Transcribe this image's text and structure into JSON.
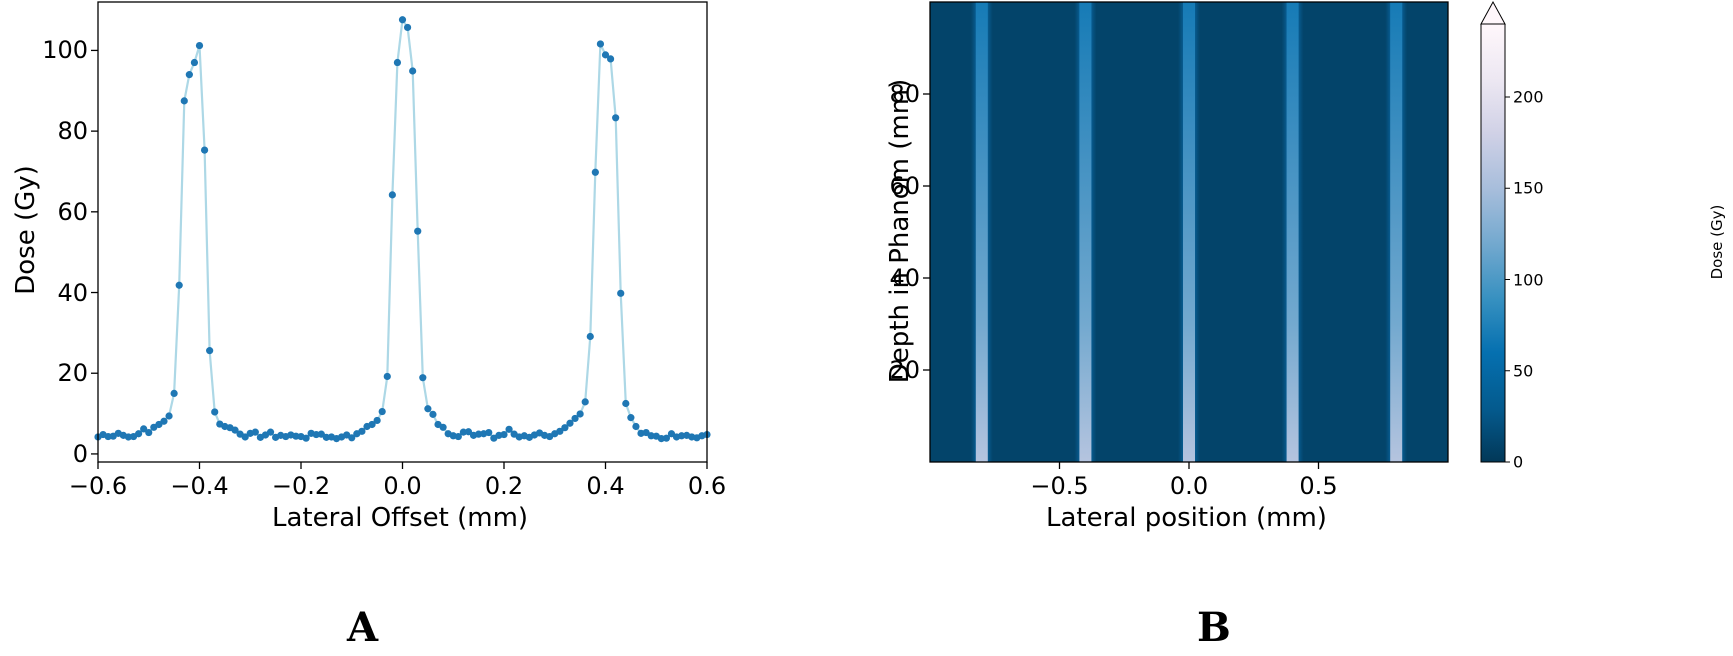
{
  "chart_data": [
    {
      "panel": "A",
      "type": "line",
      "title": "",
      "xlabel": "Lateral Offset (mm)",
      "ylabel": "Dose (Gy)",
      "xlim": [
        -0.6,
        0.6
      ],
      "ylim": [
        -2,
        112
      ],
      "xticks": [
        -0.6,
        -0.4,
        -0.2,
        0.0,
        0.2,
        0.4,
        0.6
      ],
      "xtick_labels": [
        "−0.6",
        "−0.4",
        "−0.2",
        "0.0",
        "0.2",
        "0.4",
        "0.6"
      ],
      "yticks": [
        0,
        20,
        40,
        60,
        80,
        100
      ],
      "ytick_labels": [
        "0",
        "20",
        "40",
        "60",
        "80",
        "100"
      ],
      "grid": false,
      "legend": null,
      "series": [
        {
          "name": "Dose profile",
          "line_color": "#add8e6",
          "marker_color": "#1f77b4",
          "x": [
            -0.6,
            -0.59,
            -0.58,
            -0.57,
            -0.56,
            -0.55,
            -0.54,
            -0.53,
            -0.52,
            -0.51,
            -0.5,
            -0.49,
            -0.48,
            -0.47,
            -0.46,
            -0.45,
            -0.44,
            -0.43,
            -0.42,
            -0.41,
            -0.4,
            -0.39,
            -0.38,
            -0.37,
            -0.36,
            -0.35,
            -0.34,
            -0.33,
            -0.32,
            -0.31,
            -0.3,
            -0.29,
            -0.28,
            -0.27,
            -0.26,
            -0.25,
            -0.24,
            -0.23,
            -0.22,
            -0.21,
            -0.2,
            -0.19,
            -0.18,
            -0.17,
            -0.16,
            -0.15,
            -0.14,
            -0.13,
            -0.12,
            -0.11,
            -0.1,
            -0.09,
            -0.08,
            -0.07,
            -0.06,
            -0.05,
            -0.04,
            -0.03,
            -0.02,
            -0.01,
            0.0,
            0.01,
            0.02,
            0.03,
            0.04,
            0.05,
            0.06,
            0.07,
            0.08,
            0.09,
            0.1,
            0.11,
            0.12,
            0.13,
            0.14,
            0.15,
            0.16,
            0.17,
            0.18,
            0.19,
            0.2,
            0.21,
            0.22,
            0.23,
            0.24,
            0.25,
            0.26,
            0.27,
            0.28,
            0.29,
            0.3,
            0.31,
            0.32,
            0.33,
            0.34,
            0.35,
            0.36,
            0.37,
            0.38,
            0.39,
            0.4,
            0.41,
            0.42,
            0.43,
            0.44,
            0.45,
            0.46,
            0.47,
            0.48,
            0.49,
            0.5,
            0.51,
            0.52,
            0.53,
            0.54,
            0.55,
            0.56,
            0.57,
            0.58,
            0.59,
            0.6
          ],
          "y": [
            4.2,
            4.8,
            4.3,
            4.4,
            5.1,
            4.6,
            4.2,
            4.3,
            5.0,
            6.2,
            5.3,
            6.6,
            7.3,
            8.1,
            9.4,
            15.0,
            41.8,
            87.5,
            94.0,
            97.0,
            101.2,
            75.3,
            25.6,
            10.4,
            7.4,
            6.8,
            6.5,
            5.9,
            4.9,
            4.2,
            5.1,
            5.4,
            4.1,
            4.7,
            5.4,
            4.1,
            4.6,
            4.3,
            4.7,
            4.4,
            4.3,
            3.9,
            5.1,
            4.8,
            4.9,
            4.1,
            4.2,
            3.8,
            4.2,
            4.7,
            4.0,
            5.0,
            5.6,
            6.8,
            7.3,
            8.3,
            10.5,
            19.2,
            64.2,
            97.0,
            107.6,
            105.7,
            94.9,
            55.2,
            18.9,
            11.2,
            9.8,
            7.3,
            6.6,
            5.0,
            4.5,
            4.3,
            5.4,
            5.5,
            4.6,
            4.9,
            5.0,
            5.3,
            3.9,
            4.6,
            4.8,
            6.1,
            4.9,
            4.2,
            4.5,
            4.1,
            4.7,
            5.2,
            4.6,
            4.3,
            5.0,
            5.6,
            6.5,
            7.6,
            8.8,
            9.9,
            12.9,
            29.1,
            69.8,
            101.6,
            98.9,
            97.9,
            83.3,
            39.8,
            12.5,
            9.0,
            6.8,
            5.1,
            5.3,
            4.5,
            4.4,
            3.8,
            3.9,
            5.0,
            4.2,
            4.5,
            4.6,
            4.2,
            4.0,
            4.5,
            4.8
          ]
        }
      ]
    },
    {
      "panel": "B",
      "type": "heatmap",
      "title": "",
      "xlabel": "Lateral position (mm)",
      "ylabel": "Depth in Phanom (mm)",
      "xlim": [
        -1.0,
        1.0
      ],
      "ylim": [
        0,
        100
      ],
      "xticks": [
        -0.5,
        0.0,
        0.5
      ],
      "xtick_labels": [
        "−0.5",
        "0.0",
        "0.5"
      ],
      "yticks": [
        20,
        40,
        60,
        80
      ],
      "ytick_labels": [
        "20",
        "40",
        "60",
        "80"
      ],
      "colormap": "PuBu_r",
      "beam_positions_mm": [
        -0.8,
        -0.4,
        0.0,
        0.4,
        0.8
      ],
      "beam_peak_dose_top_gy": 70,
      "beam_peak_dose_bottom_gy": 160,
      "background_dose_gy": 10,
      "colorbar": {
        "label": "Dose (Gy)",
        "range": [
          0,
          240
        ],
        "ticks": [
          0,
          50,
          100,
          150,
          200
        ],
        "tick_labels": [
          "0",
          "50",
          "100",
          "150",
          "200"
        ],
        "extend": "max"
      }
    }
  ],
  "panels": {
    "a": {
      "letter": "A",
      "xlabel": "Lateral Offset (mm)",
      "ylabel": "Dose (Gy)"
    },
    "b": {
      "letter": "B",
      "xlabel": "Lateral position (mm)",
      "ylabel": "Depth in Phanom (mm)",
      "cbar_label": "Dose (Gy)"
    }
  },
  "colors": {
    "marker": "#1f77b4",
    "line": "#add8e6",
    "heatmap_background": "#063a5c",
    "axis": "#000000"
  }
}
